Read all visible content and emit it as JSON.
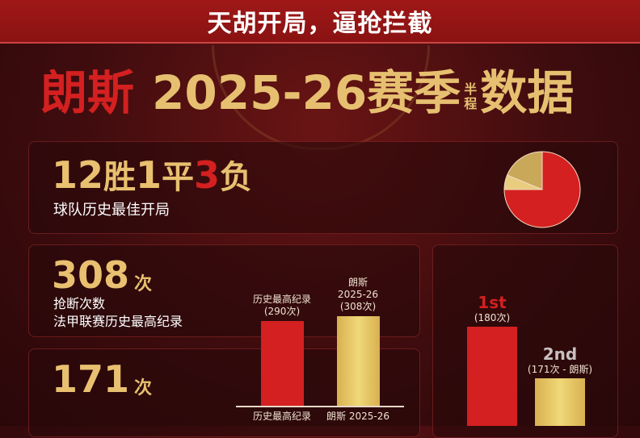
{
  "banner": {
    "text": "天胡开局，逼抢拦截"
  },
  "title": {
    "team": "朗斯",
    "season": "2025-26赛季",
    "small_top": "半",
    "small_bottom": "程",
    "suffix": "数据"
  },
  "record": {
    "wins": "12",
    "win_label": "胜",
    "draws": "1",
    "draw_label": "平",
    "losses": "3",
    "loss_label": "负",
    "caption": "球队历史最佳开局"
  },
  "tackles": {
    "number": "308",
    "unit": "次",
    "line1": "抢断次数",
    "line2": "法甲联赛历史最高纪录"
  },
  "third": {
    "number": "171",
    "unit": "次"
  },
  "colors": {
    "red": "#d42020",
    "gold": "#e0c060",
    "light_gold": "#e8cc80",
    "background": "#3e0c0e",
    "banner": "#9e1414"
  },
  "chart_data": [
    {
      "type": "pie",
      "categories": [
        "胜",
        "平",
        "负"
      ],
      "values": [
        12,
        1,
        3
      ],
      "colors": [
        "#d42020",
        "#e8cc80",
        "#c9a85a"
      ]
    },
    {
      "type": "bar",
      "categories": [
        "历史最高纪录",
        "朗斯 2025-26"
      ],
      "values": [
        290,
        308
      ],
      "data_labels": [
        [
          "历史最高纪录",
          "(290次)"
        ],
        [
          "朗斯",
          "2025-26",
          "(308次)"
        ]
      ],
      "colors": [
        "#d42020",
        "#e0c060"
      ]
    },
    {
      "type": "bar",
      "categories": [
        "1st",
        "2nd"
      ],
      "values": [
        180,
        171
      ],
      "data_labels": [
        "(180次)",
        "(171次 - 朗斯)"
      ],
      "colors": [
        "#d42020",
        "#e0c060"
      ]
    }
  ]
}
